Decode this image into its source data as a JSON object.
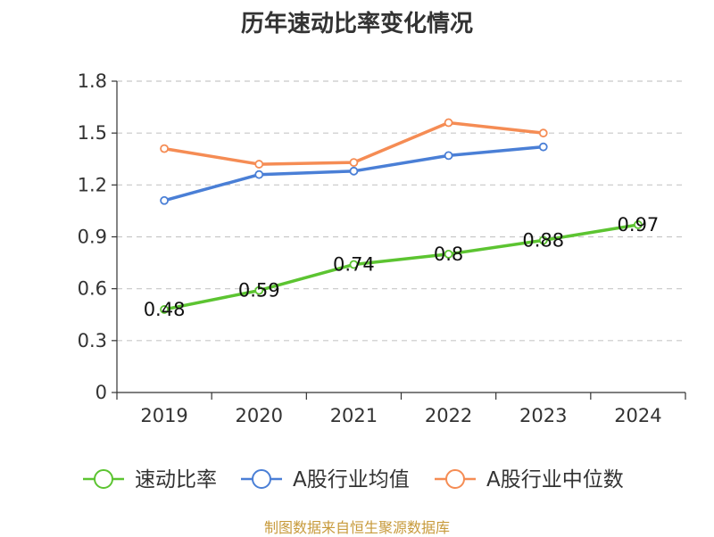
{
  "chart_data": {
    "type": "line",
    "title": "历年速动比率变化情况",
    "categories": [
      "2019",
      "2020",
      "2021",
      "2022",
      "2023",
      "2024"
    ],
    "yticks": [
      "0",
      "0.3",
      "0.6",
      "0.9",
      "1.2",
      "1.5",
      "1.8"
    ],
    "ylim": [
      0,
      1.8
    ],
    "grid": true,
    "legend_position": "bottom",
    "series": [
      {
        "name": "速动比率",
        "color": "#5cc431",
        "values": [
          0.48,
          0.59,
          0.74,
          0.8,
          0.88,
          0.97
        ],
        "labels": [
          "0.48",
          "0.59",
          "0.74",
          "0.8",
          "0.88",
          "0.97"
        ]
      },
      {
        "name": "A股行业均值",
        "color": "#4a7fd6",
        "values": [
          1.11,
          1.26,
          1.28,
          1.37,
          1.42,
          null
        ]
      },
      {
        "name": "A股行业中位数",
        "color": "#f58c54",
        "values": [
          1.41,
          1.32,
          1.33,
          1.56,
          1.5,
          null
        ]
      }
    ]
  },
  "source": "制图数据来自恒生聚源数据库"
}
